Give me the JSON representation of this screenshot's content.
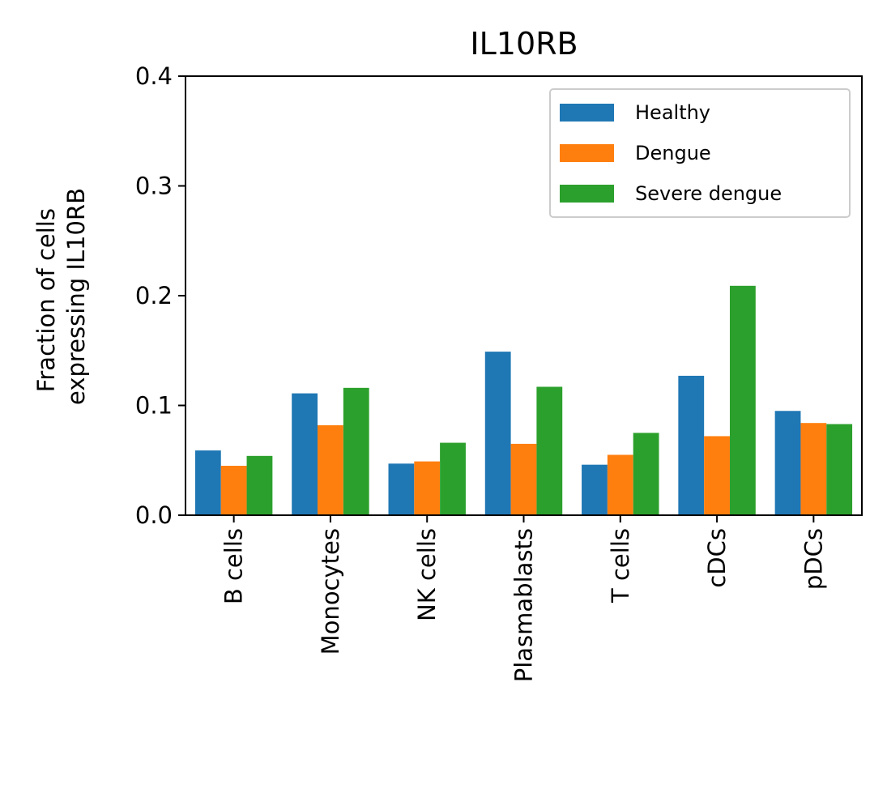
{
  "chart_data": {
    "type": "bar",
    "title": "IL10RB",
    "xlabel": "",
    "ylabel_lines": [
      "Fraction of cells",
      "expressing IL10RB"
    ],
    "ylim": [
      0,
      0.4
    ],
    "yticks": [
      "0.0",
      "0.1",
      "0.2",
      "0.3",
      "0.4"
    ],
    "categories": [
      "B cells",
      "Monocytes",
      "NK cells",
      "Plasmablasts",
      "T cells",
      "cDCs",
      "pDCs"
    ],
    "series": [
      {
        "name": "Healthy",
        "color": "#1f77b4",
        "values": [
          0.059,
          0.111,
          0.047,
          0.149,
          0.046,
          0.127,
          0.095
        ]
      },
      {
        "name": "Dengue",
        "color": "#ff7f0e",
        "values": [
          0.045,
          0.082,
          0.049,
          0.065,
          0.055,
          0.072,
          0.084
        ]
      },
      {
        "name": "Severe dengue",
        "color": "#2ca02c",
        "values": [
          0.054,
          0.116,
          0.066,
          0.117,
          0.075,
          0.209,
          0.083
        ]
      }
    ],
    "legend_position": "top-right",
    "grid": false
  }
}
